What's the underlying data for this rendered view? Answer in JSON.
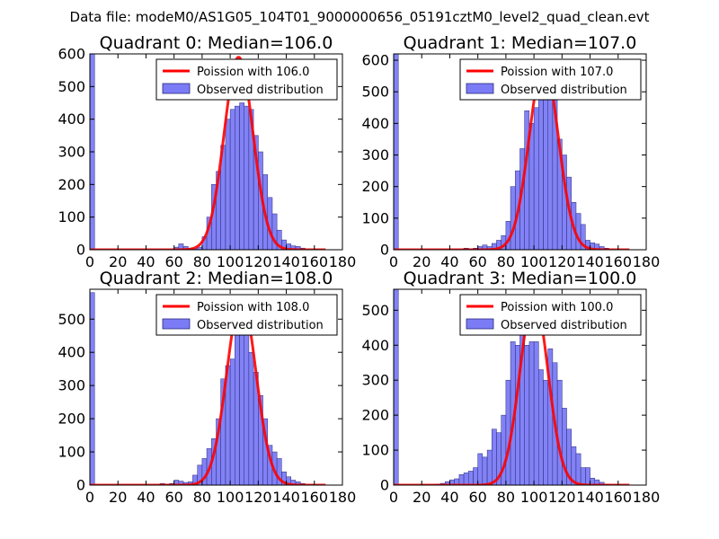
{
  "figure_title": "Data file: modeM0/AS1G05_104T01_9000000656_05191cztM0_level2_quad_clean.evt",
  "colors": {
    "histogram_fill": "#7b7bf6",
    "histogram_edge": "#2a2a7a",
    "poisson_line": "#ff0000",
    "axes": "#000000",
    "background": "#ffffff"
  },
  "chart_data": [
    {
      "type": "bar",
      "title": "Quadrant 0: Median=106.0",
      "xlim": [
        0,
        180
      ],
      "ylim": [
        0,
        600
      ],
      "xticks": [
        0,
        20,
        40,
        60,
        80,
        100,
        120,
        140,
        160,
        180
      ],
      "xtick_labels": [
        "0",
        "20",
        "40",
        "60",
        "80",
        "100",
        "120",
        "140",
        "160",
        "180"
      ],
      "yticks": [
        0,
        100,
        200,
        300,
        400,
        500,
        600
      ],
      "ytick_labels": [
        "0",
        "100",
        "200",
        "300",
        "400",
        "500",
        "600"
      ],
      "legend": [
        "Poission with 106.0",
        "Observed distribution"
      ],
      "legend_position": "top-right",
      "bin_width": 3.33,
      "histogram": [
        [
          0,
          600
        ],
        [
          60,
          8
        ],
        [
          63.3,
          18
        ],
        [
          66.7,
          10
        ],
        [
          70,
          5
        ],
        [
          73.3,
          3
        ],
        [
          76.7,
          8
        ],
        [
          80,
          40
        ],
        [
          83.3,
          100
        ],
        [
          86.7,
          200
        ],
        [
          90,
          240
        ],
        [
          93.3,
          320
        ],
        [
          96.7,
          400
        ],
        [
          100,
          430
        ],
        [
          103.3,
          440
        ],
        [
          106.7,
          450
        ],
        [
          110,
          440
        ],
        [
          113.3,
          430
        ],
        [
          116.7,
          350
        ],
        [
          120,
          300
        ],
        [
          123.3,
          230
        ],
        [
          126.7,
          160
        ],
        [
          130,
          110
        ],
        [
          133.3,
          60
        ],
        [
          136.7,
          30
        ],
        [
          140,
          18
        ],
        [
          143.3,
          12
        ],
        [
          146.7,
          10
        ],
        [
          150,
          5
        ]
      ],
      "poisson": {
        "label": "Poission with 106.0",
        "mean": 106.0,
        "peak": 590,
        "x_range": [
          0,
          168
        ]
      }
    },
    {
      "type": "bar",
      "title": "Quadrant 1: Median=107.0",
      "xlim": [
        0,
        180
      ],
      "ylim": [
        0,
        620
      ],
      "xticks": [
        0,
        20,
        40,
        60,
        80,
        100,
        120,
        140,
        160,
        180
      ],
      "xtick_labels": [
        "0",
        "20",
        "40",
        "60",
        "80",
        "100",
        "120",
        "140",
        "160",
        "180"
      ],
      "yticks": [
        0,
        100,
        200,
        300,
        400,
        500,
        600
      ],
      "ytick_labels": [
        "0",
        "100",
        "200",
        "300",
        "400",
        "500",
        "600"
      ],
      "legend": [
        "Poission with 107.0",
        "Observed distribution"
      ],
      "legend_position": "top-right",
      "bin_width": 3.33,
      "histogram": [
        [
          0,
          620
        ],
        [
          50,
          5
        ],
        [
          53.3,
          3
        ],
        [
          56.7,
          5
        ],
        [
          60,
          10
        ],
        [
          63.3,
          15
        ],
        [
          66.7,
          10
        ],
        [
          70,
          20
        ],
        [
          73.3,
          30
        ],
        [
          76.7,
          45
        ],
        [
          80,
          90
        ],
        [
          83.3,
          200
        ],
        [
          86.7,
          250
        ],
        [
          90,
          320
        ],
        [
          93.3,
          440
        ],
        [
          96.7,
          400
        ],
        [
          100,
          450
        ],
        [
          103.3,
          490
        ],
        [
          106.7,
          510
        ],
        [
          110,
          510
        ],
        [
          113.3,
          530
        ],
        [
          116.7,
          350
        ],
        [
          120,
          300
        ],
        [
          123.3,
          230
        ],
        [
          126.7,
          150
        ],
        [
          130,
          115
        ],
        [
          133.3,
          80
        ],
        [
          136.7,
          30
        ],
        [
          140,
          22
        ],
        [
          143.3,
          18
        ],
        [
          146.7,
          10
        ],
        [
          150,
          5
        ]
      ],
      "poisson": {
        "label": "Poission with 107.0",
        "mean": 107.0,
        "peak": 592,
        "x_range": [
          0,
          168
        ]
      }
    },
    {
      "type": "bar",
      "title": "Quadrant 2: Median=108.0",
      "xlim": [
        0,
        180
      ],
      "ylim": [
        0,
        590
      ],
      "xticks": [
        0,
        20,
        40,
        60,
        80,
        100,
        120,
        140,
        160,
        180
      ],
      "xtick_labels": [
        "0",
        "20",
        "40",
        "60",
        "80",
        "100",
        "120",
        "140",
        "160",
        "180"
      ],
      "yticks": [
        0,
        100,
        200,
        300,
        400,
        500
      ],
      "ytick_labels": [
        "0",
        "100",
        "200",
        "300",
        "400",
        "500"
      ],
      "legend": [
        "Poission with 108.0",
        "Observed distribution"
      ],
      "legend_position": "top-right",
      "bin_width": 3.33,
      "histogram": [
        [
          0,
          580
        ],
        [
          50,
          5
        ],
        [
          53.3,
          3
        ],
        [
          56.7,
          5
        ],
        [
          60,
          15
        ],
        [
          63.3,
          12
        ],
        [
          66.7,
          8
        ],
        [
          70,
          10
        ],
        [
          73.3,
          30
        ],
        [
          76.7,
          60
        ],
        [
          80,
          80
        ],
        [
          83.3,
          110
        ],
        [
          86.7,
          140
        ],
        [
          90,
          200
        ],
        [
          93.3,
          320
        ],
        [
          96.7,
          360
        ],
        [
          100,
          380
        ],
        [
          103.3,
          490
        ],
        [
          106.7,
          520
        ],
        [
          110,
          480
        ],
        [
          113.3,
          400
        ],
        [
          116.7,
          340
        ],
        [
          120,
          270
        ],
        [
          123.3,
          200
        ],
        [
          126.7,
          120
        ],
        [
          130,
          100
        ],
        [
          133.3,
          80
        ],
        [
          136.7,
          40
        ],
        [
          140,
          25
        ],
        [
          143.3,
          15
        ],
        [
          146.7,
          10
        ],
        [
          150,
          5
        ]
      ],
      "poisson": {
        "label": "Poission with 108.0",
        "mean": 108.0,
        "peak": 562,
        "x_range": [
          0,
          168
        ]
      }
    },
    {
      "type": "bar",
      "title": "Quadrant 3: Median=100.0",
      "xlim": [
        0,
        180
      ],
      "ylim": [
        0,
        560
      ],
      "xticks": [
        0,
        20,
        40,
        60,
        80,
        100,
        120,
        140,
        160,
        180
      ],
      "xtick_labels": [
        "0",
        "20",
        "40",
        "60",
        "80",
        "100",
        "120",
        "140",
        "160",
        "180"
      ],
      "yticks": [
        0,
        100,
        200,
        300,
        400,
        500
      ],
      "ytick_labels": [
        "0",
        "100",
        "200",
        "300",
        "400",
        "500"
      ],
      "legend": [
        "Poission with 100.0",
        "Observed distribution"
      ],
      "legend_position": "top-right",
      "bin_width": 3.33,
      "histogram": [
        [
          0,
          560
        ],
        [
          30,
          3
        ],
        [
          33.3,
          5
        ],
        [
          36.7,
          10
        ],
        [
          40,
          15
        ],
        [
          43.3,
          18
        ],
        [
          46.7,
          30
        ],
        [
          50,
          35
        ],
        [
          53.3,
          40
        ],
        [
          56.7,
          50
        ],
        [
          60,
          90
        ],
        [
          63.3,
          80
        ],
        [
          66.7,
          100
        ],
        [
          70,
          160
        ],
        [
          73.3,
          150
        ],
        [
          76.7,
          200
        ],
        [
          80,
          300
        ],
        [
          83.3,
          410
        ],
        [
          86.7,
          400
        ],
        [
          90,
          430
        ],
        [
          93.3,
          400
        ],
        [
          96.7,
          410
        ],
        [
          100,
          410
        ],
        [
          103.3,
          330
        ],
        [
          106.7,
          300
        ],
        [
          110,
          390
        ],
        [
          113.3,
          350
        ],
        [
          116.7,
          300
        ],
        [
          120,
          220
        ],
        [
          123.3,
          160
        ],
        [
          126.7,
          110
        ],
        [
          130,
          90
        ],
        [
          133.3,
          50
        ],
        [
          136.7,
          50
        ],
        [
          140,
          20
        ],
        [
          143.3,
          15
        ],
        [
          146.7,
          8
        ],
        [
          150,
          3
        ]
      ],
      "poisson": {
        "label": "Poission with 100.0",
        "mean": 100.0,
        "peak": 537,
        "x_range": [
          0,
          168
        ]
      }
    }
  ]
}
